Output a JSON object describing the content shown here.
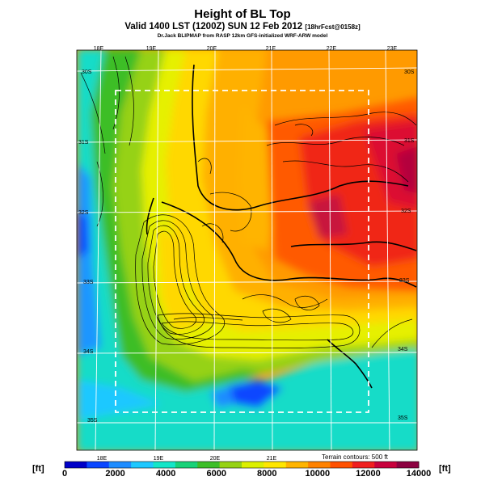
{
  "header": {
    "title": "Height of BL Top",
    "subtitle": "Valid 1400 LST (1200Z) SUN 12 Feb 2012",
    "subtitle_suffix": "[18hrFcst@0158z]",
    "credit": "Dr.Jack BLIPMAP from RASP 12km GFS-initialized WRF-ARW model"
  },
  "map": {
    "lon_labels_top": [
      "18E",
      "19E",
      "20E",
      "21E",
      "22E",
      "23E"
    ],
    "lon_labels_bottom": [
      "18E",
      "19E",
      "20E",
      "21E"
    ],
    "lat_labels_left": [
      "30S",
      "31S",
      "32S",
      "33S",
      "34S",
      "35S"
    ],
    "lat_labels_right": [
      "30S",
      "31S",
      "32S",
      "33S",
      "34S",
      "35S"
    ],
    "terrain_note": "Terrain contours: 500 ft"
  },
  "colorbar": {
    "unit_left": "[ft]",
    "unit_right": "[ft]",
    "tick_labels": [
      "0",
      "2000",
      "4000",
      "6000",
      "8000",
      "10000",
      "12000",
      "14000"
    ],
    "colors": [
      "#0000c8",
      "#0a46ff",
      "#1e8cff",
      "#1ec8ff",
      "#14e6c8",
      "#18d278",
      "#3cbe28",
      "#96d214",
      "#dcf000",
      "#ffe600",
      "#ffb400",
      "#ff8200",
      "#ff5000",
      "#f01e1e",
      "#c8003c",
      "#8c0040"
    ]
  }
}
